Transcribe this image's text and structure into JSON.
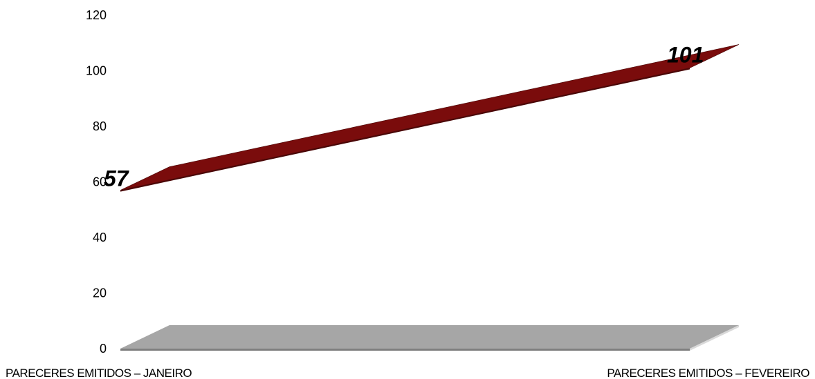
{
  "chart_data": {
    "type": "line",
    "style": "3d-ribbon",
    "title": "",
    "xlabel": "",
    "ylabel": "",
    "categories": [
      "PARECERES EMITIDOS – JANEIRO",
      "PARECERES EMITIDOS – FEVEREIRO"
    ],
    "series": [
      {
        "values": [
          57,
          101
        ],
        "color": "#7a0c0c",
        "data_labels": [
          "57",
          "101"
        ]
      }
    ],
    "y_ticks": [
      "0",
      "20",
      "40",
      "60",
      "80",
      "100",
      "120"
    ],
    "ylim": [
      0,
      120
    ],
    "grid": false,
    "legend": "none",
    "floor_color": "#a6a6a6"
  }
}
